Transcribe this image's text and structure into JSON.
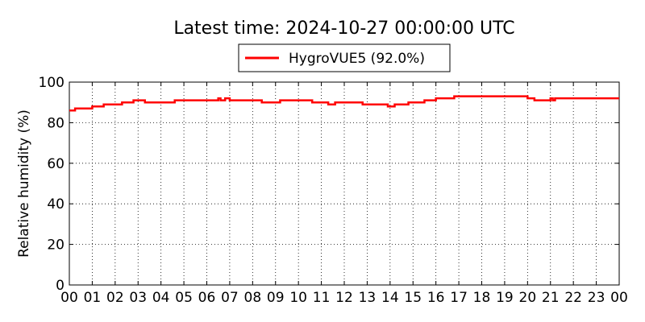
{
  "chart_data": {
    "type": "line",
    "title": "Latest time: 2024-10-27 00:00:00 UTC",
    "ylabel": "Relative humidity (%)",
    "xlabel": "",
    "ylim": [
      0,
      100
    ],
    "xlim": [
      0,
      24
    ],
    "yticks": [
      "0",
      "20",
      "40",
      "60",
      "80",
      "100"
    ],
    "xticks": [
      "00",
      "01",
      "02",
      "03",
      "04",
      "05",
      "06",
      "07",
      "08",
      "09",
      "10",
      "11",
      "12",
      "13",
      "14",
      "15",
      "16",
      "17",
      "18",
      "19",
      "20",
      "21",
      "22",
      "23",
      "00"
    ],
    "grid": true,
    "legend_position": "top-center",
    "series": [
      {
        "name": "HygroVUE5 (92.0%)",
        "color": "#ff0000",
        "step": true,
        "x": [
          0,
          0.25,
          1,
          1.5,
          2.3,
          2.8,
          3.3,
          4.6,
          4.7,
          6.5,
          6.6,
          6.8,
          7,
          7.2,
          8.4,
          9.2,
          10.6,
          11.3,
          11.6,
          12.8,
          13.9,
          14.2,
          14.8,
          15.5,
          16,
          16.8,
          19.5,
          20,
          20.3,
          21,
          21.1,
          21.2,
          24
        ],
        "values": [
          86,
          87,
          88,
          89,
          90,
          91,
          90,
          91,
          91,
          92,
          91,
          92,
          91,
          91,
          90,
          91,
          90,
          89,
          90,
          89,
          88,
          89,
          90,
          91,
          92,
          93,
          93,
          92,
          91,
          92,
          91,
          92,
          92
        ]
      }
    ]
  }
}
